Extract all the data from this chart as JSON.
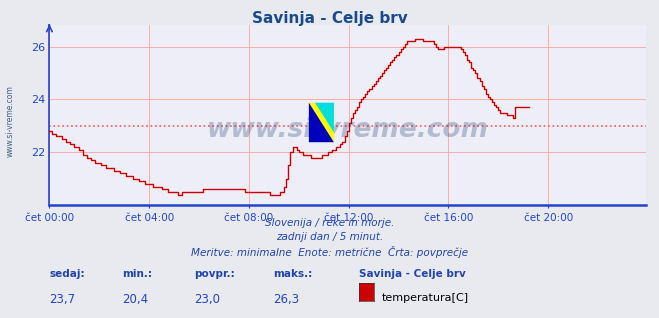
{
  "title": "Savinja - Celje brv",
  "title_color": "#1a4a8a",
  "bg_color": "#e8eaf0",
  "plot_bg_color": "#eeeef8",
  "grid_color": "#ffaaaa",
  "axis_color": "#2244cc",
  "line_color": "#cc0000",
  "avg_line_color": "#ff5555",
  "avg_value": 23.0,
  "ylim": [
    20.0,
    26.8
  ],
  "yticks": [
    22,
    24,
    26
  ],
  "xlabel_color": "#2244aa",
  "xtick_labels": [
    "čet 00:00",
    "čet 04:00",
    "čet 08:00",
    "čet 12:00",
    "čet 16:00",
    "čet 20:00"
  ],
  "xtick_positions": [
    0,
    48,
    96,
    144,
    192,
    240
  ],
  "total_points": 288,
  "footer_line1": "Slovenija / reke in morje.",
  "footer_line2": "zadnji dan / 5 minut.",
  "footer_line3": "Meritve: minimalne  Enote: metrične  Črta: povprečje",
  "footer_color": "#2244aa",
  "label_sedaj": "sedaj:",
  "label_min": "min.:",
  "label_povpr": "povpr.:",
  "label_maks": "maks.:",
  "val_sedaj": "23,7",
  "val_min": "20,4",
  "val_povpr": "23,0",
  "val_maks": "26,3",
  "legend_title": "Savinja - Celje brv",
  "legend_item": "temperatura[C]",
  "watermark": "www.si-vreme.com",
  "watermark_color": "#1a3a6a",
  "temperature_data": [
    22.8,
    22.7,
    22.7,
    22.6,
    22.6,
    22.6,
    22.5,
    22.5,
    22.4,
    22.4,
    22.3,
    22.3,
    22.2,
    22.2,
    22.1,
    22.1,
    21.9,
    21.9,
    21.8,
    21.8,
    21.7,
    21.7,
    21.6,
    21.6,
    21.6,
    21.5,
    21.5,
    21.4,
    21.4,
    21.4,
    21.4,
    21.3,
    21.3,
    21.3,
    21.2,
    21.2,
    21.2,
    21.1,
    21.1,
    21.1,
    21.0,
    21.0,
    21.0,
    20.9,
    20.9,
    20.9,
    20.8,
    20.8,
    20.8,
    20.8,
    20.7,
    20.7,
    20.7,
    20.7,
    20.6,
    20.6,
    20.6,
    20.5,
    20.5,
    20.5,
    20.5,
    20.5,
    20.4,
    20.4,
    20.5,
    20.5,
    20.5,
    20.5,
    20.5,
    20.5,
    20.5,
    20.5,
    20.5,
    20.5,
    20.6,
    20.6,
    20.6,
    20.6,
    20.6,
    20.6,
    20.6,
    20.6,
    20.6,
    20.6,
    20.6,
    20.6,
    20.6,
    20.6,
    20.6,
    20.6,
    20.6,
    20.6,
    20.6,
    20.6,
    20.5,
    20.5,
    20.5,
    20.5,
    20.5,
    20.5,
    20.5,
    20.5,
    20.5,
    20.5,
    20.5,
    20.5,
    20.4,
    20.4,
    20.4,
    20.4,
    20.4,
    20.5,
    20.5,
    20.7,
    21.0,
    21.5,
    22.0,
    22.2,
    22.2,
    22.1,
    22.0,
    22.0,
    21.9,
    21.9,
    21.9,
    21.9,
    21.8,
    21.8,
    21.8,
    21.8,
    21.8,
    21.9,
    21.9,
    21.9,
    22.0,
    22.0,
    22.1,
    22.1,
    22.2,
    22.2,
    22.3,
    22.4,
    22.6,
    22.8,
    23.1,
    23.3,
    23.5,
    23.6,
    23.7,
    23.9,
    24.0,
    24.1,
    24.2,
    24.3,
    24.4,
    24.5,
    24.6,
    24.7,
    24.8,
    24.9,
    25.0,
    25.1,
    25.2,
    25.3,
    25.4,
    25.5,
    25.6,
    25.7,
    25.8,
    25.9,
    26.0,
    26.1,
    26.2,
    26.2,
    26.2,
    26.2,
    26.3,
    26.3,
    26.3,
    26.3,
    26.2,
    26.2,
    26.2,
    26.2,
    26.2,
    26.1,
    26.0,
    25.9,
    25.9,
    25.9,
    26.0,
    26.0,
    26.0,
    26.0,
    26.0,
    26.0,
    26.0,
    26.0,
    25.9,
    25.8,
    25.7,
    25.5,
    25.4,
    25.2,
    25.1,
    25.0,
    24.8,
    24.7,
    24.5,
    24.4,
    24.2,
    24.1,
    24.0,
    23.9,
    23.8,
    23.7,
    23.6,
    23.5,
    23.5,
    23.5,
    23.4,
    23.4,
    23.4,
    23.3,
    23.7,
    23.7,
    23.7,
    23.7,
    23.7,
    23.7,
    23.7,
    23.7
  ]
}
